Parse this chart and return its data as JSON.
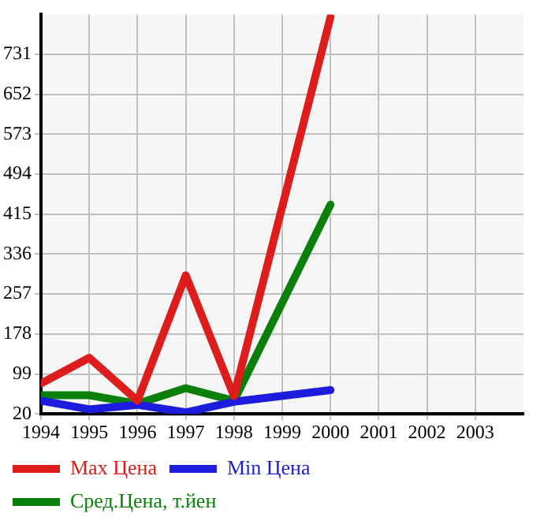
{
  "chart_data": {
    "type": "line",
    "x": [
      1994,
      1995,
      1996,
      1997,
      1998,
      1999,
      2000
    ],
    "series": [
      {
        "name": "Max Цена",
        "color": "#dd1c1c",
        "values": [
          80,
          131,
          46,
          294,
          55,
          null,
          805
        ]
      },
      {
        "name": "Min Цена",
        "color": "#1c1cdd",
        "values": [
          46,
          29,
          38,
          23,
          44,
          null,
          67
        ]
      },
      {
        "name": "Сред.Цена, т.йен",
        "color": "#0a800a",
        "values": [
          57,
          57,
          40,
          71,
          46,
          null,
          434
        ]
      }
    ],
    "xlim": [
      1994,
      2004
    ],
    "xticks": [
      1994,
      1995,
      1996,
      1997,
      1998,
      1999,
      2000,
      2001,
      2002,
      2003
    ],
    "ylim": [
      20,
      810
    ],
    "yticks": [
      20,
      99,
      178,
      257,
      336,
      415,
      494,
      573,
      652,
      731
    ],
    "grid": true,
    "legend": "bottom",
    "marker": "none",
    "line_style": "solid"
  }
}
